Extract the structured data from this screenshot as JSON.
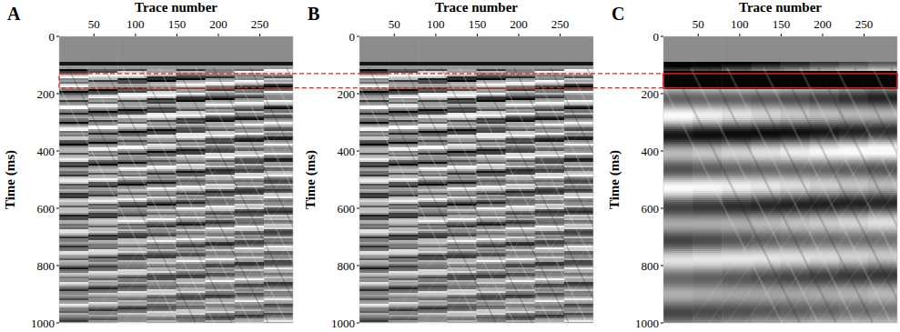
{
  "chart_data": [
    {
      "type": "image",
      "panel": "A",
      "xlabel": "Trace number",
      "ylabel": "Time (ms)",
      "xlim": [
        8,
        290
      ],
      "ylim": [
        0,
        1000
      ],
      "xticks": [
        50,
        100,
        150,
        200,
        250
      ],
      "yticks": [
        0,
        200,
        400,
        600,
        800,
        1000
      ]
    },
    {
      "type": "image",
      "panel": "B",
      "xlabel": "Trace number",
      "ylabel": "Time (ms)",
      "xlim": [
        8,
        290
      ],
      "ylim": [
        0,
        1000
      ],
      "xticks": [
        50,
        100,
        150,
        200,
        250
      ],
      "yticks": [
        0,
        200,
        400,
        600,
        800,
        1000
      ]
    },
    {
      "type": "image",
      "panel": "C",
      "xlabel": "Trace number",
      "ylabel": "Time (ms)",
      "xlim": [
        8,
        290
      ],
      "ylim": [
        0,
        1000
      ],
      "xticks": [
        50,
        100,
        150,
        200,
        250
      ],
      "yticks": [
        0,
        200,
        400,
        600,
        800,
        1000
      ]
    }
  ],
  "highlight": {
    "time": [
      130,
      180
    ]
  }
}
